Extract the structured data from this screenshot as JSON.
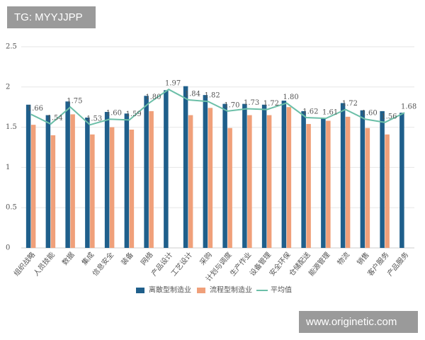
{
  "chart_data": {
    "type": "bar_line",
    "categories": [
      "组织战略",
      "人员技能",
      "数据",
      "集成",
      "信息安全",
      "装备",
      "网络",
      "产品设计",
      "工艺设计",
      "采购",
      "计划与调度",
      "生产作业",
      "设备管理",
      "安全环保",
      "仓储配送",
      "能源管理",
      "物流",
      "销售",
      "客户服务",
      "产品服务"
    ],
    "series": [
      {
        "name": "离散型制造业",
        "type": "bar",
        "color": "#1f5f8b",
        "values": [
          1.78,
          1.65,
          1.82,
          1.62,
          1.69,
          1.67,
          1.89,
          1.96,
          2.01,
          1.9,
          1.79,
          1.79,
          1.78,
          1.83,
          1.7,
          1.61,
          1.8,
          1.71,
          1.7,
          1.68
        ]
      },
      {
        "name": "流程型制造业",
        "type": "bar",
        "color": "#f0a07a",
        "values": [
          1.53,
          1.4,
          1.66,
          1.41,
          1.5,
          1.47,
          1.7,
          null,
          1.65,
          1.74,
          1.49,
          1.65,
          1.65,
          1.75,
          1.54,
          1.58,
          1.63,
          1.49,
          1.41,
          null
        ]
      },
      {
        "name": "平均值",
        "type": "line",
        "color": "#6cbfa8",
        "values": [
          1.66,
          1.54,
          1.75,
          1.53,
          1.6,
          1.59,
          1.8,
          1.97,
          1.84,
          1.82,
          1.7,
          1.73,
          1.72,
          1.8,
          1.62,
          1.61,
          1.72,
          1.6,
          1.56,
          1.68
        ],
        "value_labels": [
          "1.66",
          "1.54",
          "1.75",
          "1.53",
          "1.60",
          "1.59",
          "1.80",
          "1.97",
          "1.84",
          "1.82",
          "1.70",
          "1.73",
          "1.72",
          "1.80",
          "1.62",
          "1.61",
          "1.72",
          "1.60",
          "1.56",
          "1.68"
        ]
      }
    ],
    "ylim": [
      0,
      2.5
    ],
    "yticks": [
      0,
      0.5,
      1,
      1.5,
      2,
      2.5
    ],
    "grid": true,
    "legend": "bottom"
  },
  "watermarks": {
    "top": "TG: MYYJJPP",
    "bottom": "www.originetic.com"
  }
}
